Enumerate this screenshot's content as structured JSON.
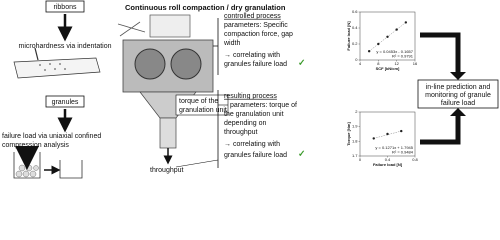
{
  "left": {
    "ribbons": "ribbons",
    "ribbon_method": [
      "microhardness via indentation"
    ],
    "granules": "granules",
    "granule_method": [
      "failure load via uniaxial confined",
      "compression analysis"
    ]
  },
  "center": {
    "title": "Continuous roll compaction / dry granulation",
    "torque": [
      "torque of the",
      "granulation unit"
    ],
    "throughput": "throughput"
  },
  "controlled": {
    "heading": "controlled process",
    "lines": [
      "parameters: Specific",
      "compaction force, gap",
      "width",
      "→ correlating with",
      "granules failure load"
    ],
    "check": "✓"
  },
  "resulting": {
    "heading": "resulting process",
    "lines": [
      "parameters: torque of",
      "the granulation unit",
      "depending on",
      "throughput",
      "→ correlating with",
      "granules failure load"
    ],
    "check": "✓"
  },
  "outcome": [
    "in-line prediction and",
    "monitoring of granule",
    "failure load"
  ],
  "charts": [
    {
      "type": "scatter",
      "xlabel": "SCF [kN/cm]",
      "ylabel": "Failure load [N]",
      "x": [
        6,
        8,
        10,
        12,
        14
      ],
      "values": [
        0.11,
        0.2,
        0.29,
        0.38,
        0.47
      ],
      "xlim": [
        4,
        16
      ],
      "xticks": [
        4,
        8,
        12,
        16
      ],
      "ylim": [
        0,
        0.6
      ],
      "yticks": [
        0,
        0.2,
        0.4,
        0.6
      ],
      "annotation": [
        "y = 0.0453x - 0.1657",
        "R² = 0.9791"
      ]
    },
    {
      "type": "scatter",
      "xlabel": "Failure load [N]",
      "ylabel": "Torque [Nm]",
      "x": [
        0.2,
        0.4,
        0.6
      ],
      "values": [
        1.82,
        1.85,
        1.87
      ],
      "xlim": [
        0,
        0.8
      ],
      "xticks": [
        0,
        0.4,
        0.8
      ],
      "ylim": [
        1.7,
        2
      ],
      "yticks": [
        1.7,
        1.8,
        1.9,
        2
      ],
      "annotation": [
        "y = 0.1271x + 1.7945",
        "R² = 0.9484"
      ]
    }
  ]
}
